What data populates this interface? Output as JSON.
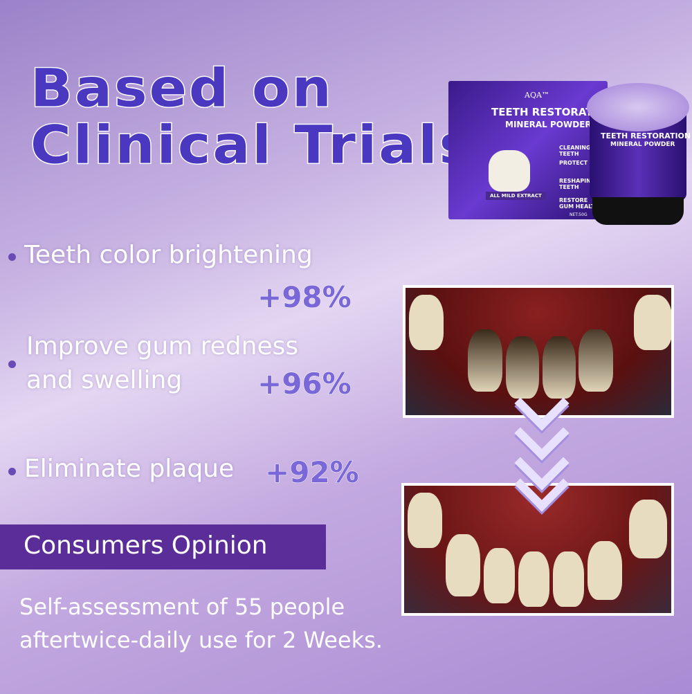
{
  "title": {
    "line1": "Based on",
    "line2": "Clinical Trials"
  },
  "product": {
    "brand": "AQA™",
    "name": "TEETH RESTORATION",
    "subtitle": "MINERAL POWDER",
    "features": [
      "CLEANING TEETH",
      "PROTECT",
      "RESHAPING TEETH",
      "RESTORE GUM HEALTH"
    ],
    "extract": "ALL MILD EXTRACT",
    "net": "NET:50G"
  },
  "results": [
    {
      "label": "Teeth color brightening",
      "value": "+98%"
    },
    {
      "label_line1": "Improve gum redness",
      "label_line2": "and swelling",
      "value": "+96%"
    },
    {
      "label": "Eliminate plaque",
      "value": "+92%"
    }
  ],
  "banner": {
    "label": "Consumers Opinion"
  },
  "note": {
    "line1": "Self-assessment of 55 people",
    "line2": "aftertwice-daily use for 2 Weeks."
  },
  "colors": {
    "title": "#4a38c0",
    "percent": "#7a68d8",
    "banner": "#5b2d98"
  }
}
